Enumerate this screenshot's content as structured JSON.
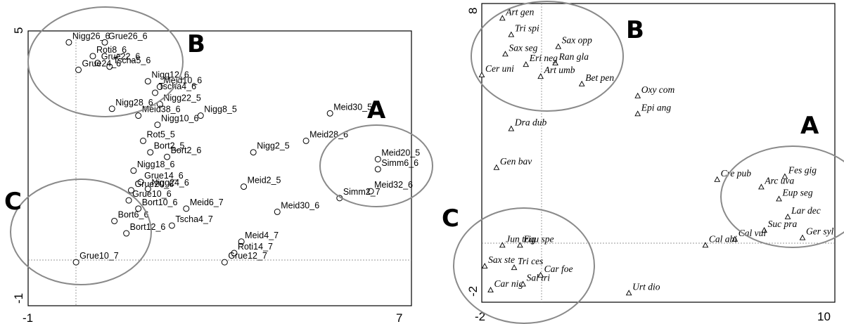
{
  "chart_data": [
    {
      "type": "scatter",
      "marker": "circle",
      "xlim": [
        -1,
        7
      ],
      "ylim": [
        -1,
        5
      ],
      "x_ticks": [
        "-1",
        "7"
      ],
      "y_ticks": [
        "5",
        "-1"
      ],
      "zero_lines": true,
      "points": [
        {
          "label": "Nigg26_6",
          "x": -0.15,
          "y": 4.75
        },
        {
          "label": "Grue26_6",
          "x": 0.6,
          "y": 4.75
        },
        {
          "label": "Roti8_6",
          "x": 0.35,
          "y": 4.45
        },
        {
          "label": "Grue22_6",
          "x": 0.45,
          "y": 4.3
        },
        {
          "label": "Tscha5_6",
          "x": 0.7,
          "y": 4.22
        },
        {
          "label": "Grue24_6",
          "x": 0.05,
          "y": 4.15
        },
        {
          "label": "Nigg12_6",
          "x": 1.5,
          "y": 3.9
        },
        {
          "label": "Meid10_6",
          "x": 1.75,
          "y": 3.78
        },
        {
          "label": "Tscha4_6",
          "x": 1.65,
          "y": 3.65
        },
        {
          "label": "Nigg22_5",
          "x": 1.75,
          "y": 3.4
        },
        {
          "label": "Nigg28_6",
          "x": 0.75,
          "y": 3.3
        },
        {
          "label": "Meid38_6",
          "x": 1.3,
          "y": 3.15
        },
        {
          "label": "Nigg8_5",
          "x": 2.6,
          "y": 3.15
        },
        {
          "label": "Meid30_5",
          "x": 5.3,
          "y": 3.2
        },
        {
          "label": "Nigg10_6",
          "x": 1.7,
          "y": 2.95
        },
        {
          "label": "Rot5_5",
          "x": 1.4,
          "y": 2.6
        },
        {
          "label": "Bort2_5",
          "x": 1.55,
          "y": 2.35
        },
        {
          "label": "Bort2_6",
          "x": 1.9,
          "y": 2.25
        },
        {
          "label": "Meid28_6",
          "x": 4.8,
          "y": 2.6
        },
        {
          "label": "Meid20_5",
          "x": 6.3,
          "y": 2.2
        },
        {
          "label": "Simm6_6",
          "x": 6.3,
          "y": 1.98
        },
        {
          "label": "Nigg18_6",
          "x": 1.2,
          "y": 1.95
        },
        {
          "label": "Grue14_6",
          "x": 1.35,
          "y": 1.7
        },
        {
          "label": "Grue20_6",
          "x": 1.15,
          "y": 1.52
        },
        {
          "label": "Meid32_6",
          "x": 6.15,
          "y": 1.5
        },
        {
          "label": "Simm2_7",
          "x": 5.5,
          "y": 1.35
        },
        {
          "label": "Grue10_6",
          "x": 1.1,
          "y": 1.3
        },
        {
          "label": "Nigg24_6",
          "x": 1.5,
          "y": 1.55
        },
        {
          "label": "Bort10_6",
          "x": 1.3,
          "y": 1.12
        },
        {
          "label": "Meid6_7",
          "x": 2.3,
          "y": 1.12
        },
        {
          "label": "Bort6_6",
          "x": 0.8,
          "y": 0.85
        },
        {
          "label": "Bort12_6",
          "x": 1.05,
          "y": 0.58
        },
        {
          "label": "Tscha4_7",
          "x": 2.0,
          "y": 0.75
        },
        {
          "label": "Meid30_6",
          "x": 4.2,
          "y": 1.05
        },
        {
          "label": "Meid4_7",
          "x": 3.45,
          "y": 0.4
        },
        {
          "label": "Roti14_7",
          "x": 3.3,
          "y": 0.15
        },
        {
          "label": "Grue12_7",
          "x": 3.1,
          "y": -0.05
        },
        {
          "label": "Grue10_7",
          "x": 0.0,
          "y": -0.05
        },
        {
          "label": "Nigg2_5",
          "x": 3.7,
          "y": 2.35
        },
        {
          "label": "Meid2_5",
          "x": 3.5,
          "y": 1.6
        }
      ],
      "annotations": [
        "A",
        "B",
        "C"
      ]
    },
    {
      "type": "scatter",
      "marker": "triangle",
      "xlim": [
        -2,
        10
      ],
      "ylim": [
        -2,
        8
      ],
      "x_ticks": [
        "-2",
        "10"
      ],
      "y_ticks": [
        "8",
        "-2"
      ],
      "zero_lines": true,
      "points": [
        {
          "label": "Art gen",
          "x": -1.3,
          "y": 7.5
        },
        {
          "label": "Tri spi",
          "x": -1.0,
          "y": 6.95
        },
        {
          "label": "Sax seg",
          "x": -1.2,
          "y": 6.3
        },
        {
          "label": "Sax opp",
          "x": 0.6,
          "y": 6.55
        },
        {
          "label": "Ran gla",
          "x": 0.5,
          "y": 6.0
        },
        {
          "label": "Eri neg",
          "x": -0.5,
          "y": 5.95
        },
        {
          "label": "Cer uni",
          "x": -2.0,
          "y": 5.6
        },
        {
          "label": "Art umb",
          "x": 0.0,
          "y": 5.55
        },
        {
          "label": "Bet pen",
          "x": 1.4,
          "y": 5.3
        },
        {
          "label": "Oxy com",
          "x": 3.3,
          "y": 4.9
        },
        {
          "label": "Epi ang",
          "x": 3.3,
          "y": 4.3
        },
        {
          "label": "Dra dub",
          "x": -1.0,
          "y": 3.8
        },
        {
          "label": "Gen bav",
          "x": -1.5,
          "y": 2.5
        },
        {
          "label": "Fes gig",
          "x": 8.3,
          "y": 2.2
        },
        {
          "label": "Arc uva",
          "x": 7.5,
          "y": 1.85
        },
        {
          "label": "Eup seg",
          "x": 8.1,
          "y": 1.45
        },
        {
          "label": "Lar dec",
          "x": 8.4,
          "y": 0.85
        },
        {
          "label": "Suc pra",
          "x": 7.6,
          "y": 0.4
        },
        {
          "label": "Cal vul",
          "x": 6.6,
          "y": 0.1
        },
        {
          "label": "Ger syl",
          "x": 8.9,
          "y": 0.15
        },
        {
          "label": "Jun trig",
          "x": -1.3,
          "y": -0.1
        },
        {
          "label": "Equ spe",
          "x": -0.7,
          "y": -0.1
        },
        {
          "label": "Sax ste",
          "x": -1.9,
          "y": -0.8
        },
        {
          "label": "Car nig",
          "x": -1.7,
          "y": -1.6
        },
        {
          "label": "Sal tri",
          "x": -0.6,
          "y": -1.4
        },
        {
          "label": "Car foe",
          "x": 0.0,
          "y": -1.1
        },
        {
          "label": "Tri ces",
          "x": -0.9,
          "y": -0.85
        },
        {
          "label": "Urt dio",
          "x": 3.0,
          "y": -1.7
        },
        {
          "label": "Cal abi",
          "x": 5.6,
          "y": -0.1
        },
        {
          "label": "Cre pub",
          "x": 6.0,
          "y": 2.1
        }
      ],
      "annotations": [
        "A",
        "B",
        "C"
      ]
    }
  ]
}
